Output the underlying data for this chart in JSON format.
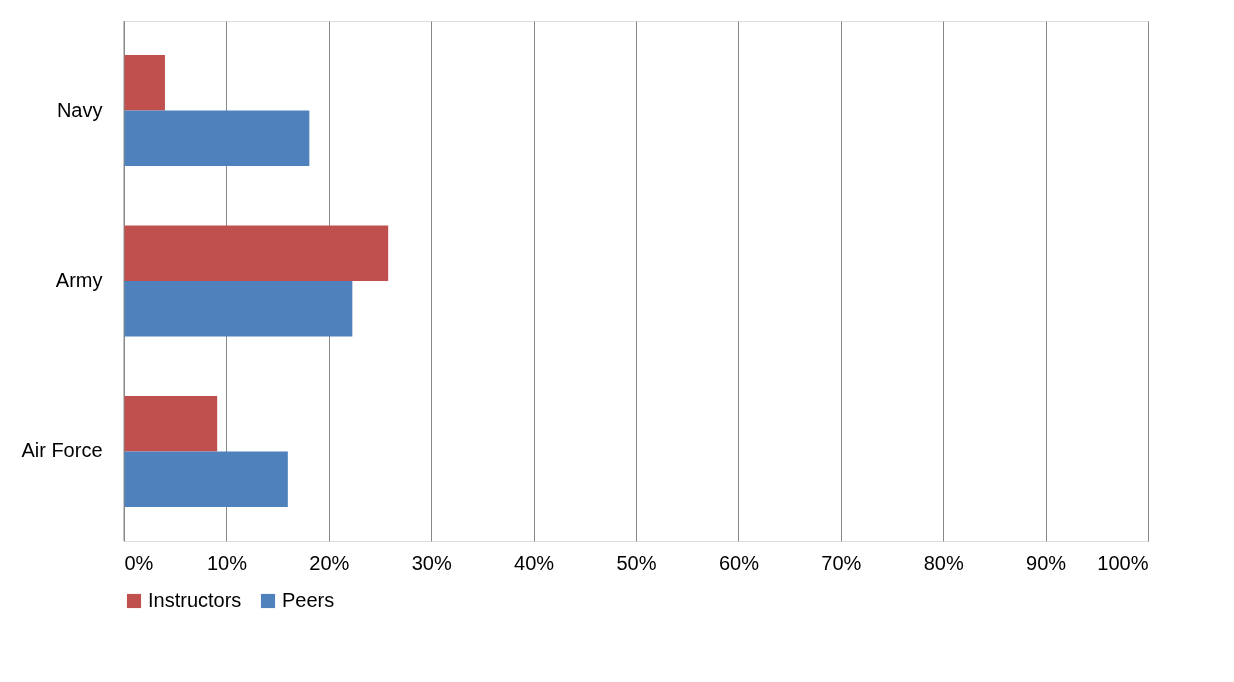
{
  "chart_data": {
    "type": "bar",
    "orientation": "horizontal",
    "categories": [
      "Navy",
      "Army",
      "Air Force"
    ],
    "series": [
      {
        "name": "Instructors",
        "color": "#c0504d",
        "values": [
          4.0,
          25.8,
          9.1
        ]
      },
      {
        "name": "Peers",
        "color": "#4f81bd",
        "values": [
          18.1,
          22.3,
          16.0
        ]
      }
    ],
    "xlim": [
      0,
      100
    ],
    "xticks": [
      {
        "value": 0,
        "label": "0%"
      },
      {
        "value": 10,
        "label": "10%"
      },
      {
        "value": 20,
        "label": "20%"
      },
      {
        "value": 30,
        "label": "30%"
      },
      {
        "value": 40,
        "label": "40%"
      },
      {
        "value": 50,
        "label": "50%"
      },
      {
        "value": 60,
        "label": "60%"
      },
      {
        "value": 70,
        "label": "70%"
      },
      {
        "value": 80,
        "label": "80%"
      },
      {
        "value": 90,
        "label": "90%"
      },
      {
        "value": 100,
        "label": "100%"
      }
    ],
    "grid": "x",
    "legend": "bottom"
  }
}
